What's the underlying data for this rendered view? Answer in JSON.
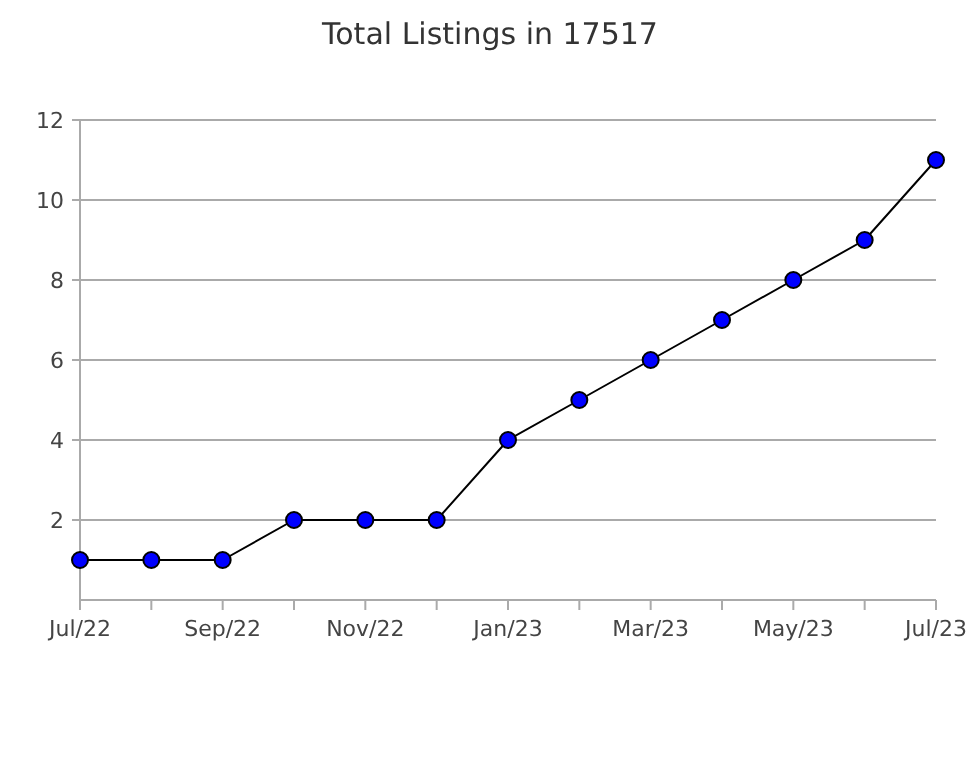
{
  "chart_data": {
    "type": "line",
    "title": "Total Listings in 17517",
    "categories": [
      "Jul/22",
      null,
      "Sep/22",
      null,
      "Nov/22",
      null,
      "Jan/23",
      null,
      "Mar/23",
      null,
      "May/23",
      null,
      "Jul/23"
    ],
    "series": [
      {
        "color": "#0000ff",
        "values": [
          1,
          1,
          1,
          2,
          2,
          2,
          4,
          5,
          6,
          7,
          8,
          9,
          11
        ]
      }
    ],
    "ylim": [
      0,
      12
    ],
    "yticks": [
      2,
      4,
      6,
      8,
      10,
      12
    ],
    "grid": "y",
    "marker": "circle",
    "line_style": "solid"
  }
}
